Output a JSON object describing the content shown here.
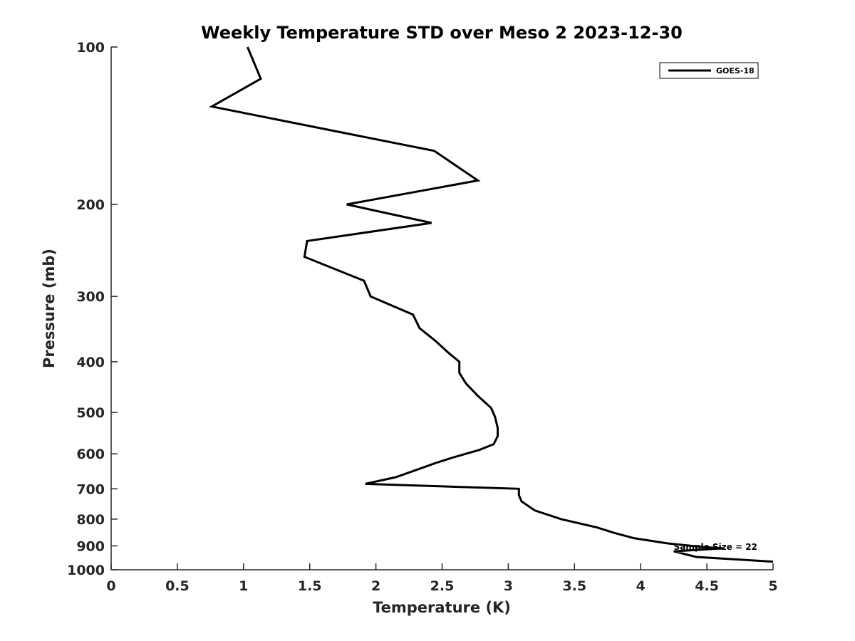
{
  "chart_data": {
    "type": "line",
    "title": "Weekly Temperature STD over Meso 2 2023-12-30",
    "xlabel": "Temperature (K)",
    "ylabel": "Pressure (mb)",
    "xlim": [
      0,
      5
    ],
    "ylim": [
      100,
      1000
    ],
    "y_scale": "log",
    "y_reversed": true,
    "grid": false,
    "legend_position": "top-right",
    "x_ticks": [
      "0",
      "0.5",
      "1",
      "1.5",
      "2",
      "2.5",
      "3",
      "3.5",
      "4",
      "4.5",
      "5"
    ],
    "y_ticks": [
      "100",
      "200",
      "300",
      "400",
      "500",
      "600",
      "700",
      "800",
      "900",
      "1000"
    ],
    "series": [
      {
        "name": "GOES-18",
        "color": "#000000",
        "x": [
          1.03,
          1.13,
          0.76,
          2.44,
          2.77,
          1.78,
          2.42,
          1.48,
          1.46,
          1.91,
          1.96,
          2.28,
          2.33,
          2.45,
          2.55,
          2.63,
          2.63,
          2.68,
          2.77,
          2.87,
          2.9,
          2.92,
          2.92,
          2.89,
          2.78,
          2.58,
          2.45,
          2.3,
          2.15,
          1.92,
          3.08,
          3.08,
          3.1,
          3.2,
          3.4,
          3.67,
          3.8,
          3.95,
          4.2,
          4.48,
          4.62,
          4.25,
          4.42,
          5.0
        ],
        "y": [
          100,
          115,
          130,
          158,
          180,
          200,
          217,
          235,
          252,
          280,
          300,
          325,
          345,
          365,
          385,
          400,
          420,
          440,
          465,
          490,
          510,
          535,
          555,
          575,
          590,
          610,
          625,
          645,
          665,
          685,
          700,
          720,
          740,
          770,
          800,
          830,
          850,
          870,
          890,
          905,
          910,
          922,
          945,
          965
        ]
      }
    ],
    "annotations": [
      {
        "text": "Sample Size = 22",
        "x": 4.25,
        "y": 905
      }
    ]
  }
}
